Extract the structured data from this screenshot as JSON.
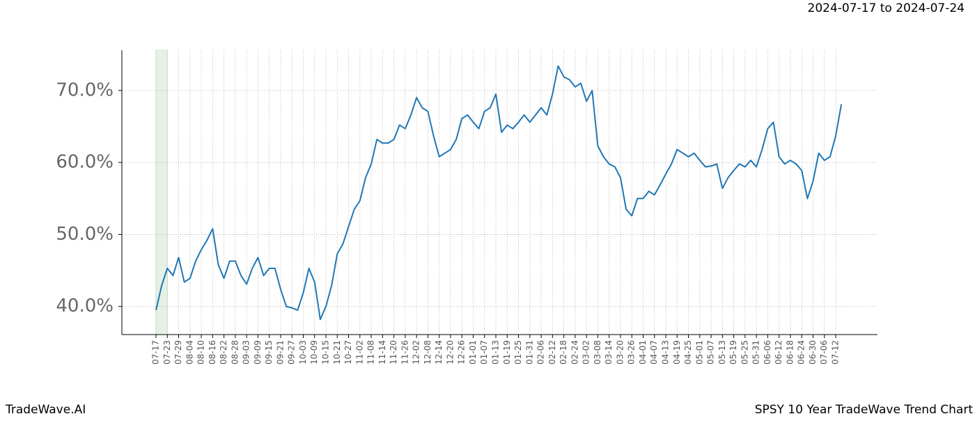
{
  "chart_data": {
    "type": "line",
    "title": "2024-07-17 to 2024-07-24",
    "brand": "TradeWave.AI",
    "subtitle": "SPSY 10 Year TradeWave Trend Chart",
    "categories": [
      "07-17",
      null,
      "07-23",
      null,
      "07-29",
      null,
      "08-04",
      null,
      "08-10",
      null,
      "08-16",
      null,
      "08-22",
      null,
      "08-28",
      null,
      "09-03",
      null,
      "09-09",
      null,
      "09-15",
      null,
      "09-21",
      null,
      "09-27",
      null,
      "10-03",
      null,
      "10-09",
      null,
      "10-15",
      null,
      "10-21",
      null,
      "10-27",
      null,
      "11-02",
      null,
      "11-08",
      null,
      "11-14",
      null,
      "11-20",
      null,
      "11-26",
      null,
      "12-02",
      null,
      "12-08",
      null,
      "12-14",
      null,
      "12-20",
      null,
      "12-26",
      null,
      "01-01",
      null,
      "01-07",
      null,
      "01-13",
      null,
      "01-19",
      null,
      "01-25",
      null,
      "01-31",
      null,
      "02-06",
      null,
      "02-12",
      null,
      "02-18",
      null,
      "02-24",
      null,
      "03-02",
      null,
      "03-08",
      null,
      "03-14",
      null,
      "03-20",
      null,
      "03-26",
      null,
      "04-01",
      null,
      "04-07",
      null,
      "04-13",
      null,
      "04-19",
      null,
      "04-25",
      null,
      "05-01",
      null,
      "05-07",
      null,
      "05-13",
      null,
      "05-19",
      null,
      "05-25",
      null,
      "05-31",
      null,
      "06-06",
      null,
      "06-12",
      null,
      "06-18",
      null,
      "06-24",
      null,
      "06-30",
      null,
      "07-06",
      null,
      "07-12",
      null
    ],
    "series": [
      {
        "color": "#1f77b4",
        "values": [
          39.5,
          42.9,
          45.3,
          44.3,
          46.8,
          43.4,
          43.9,
          46.3,
          47.9,
          49.2,
          50.8,
          45.8,
          43.9,
          46.3,
          46.3,
          44.3,
          43.1,
          45.3,
          46.8,
          44.3,
          45.3,
          45.3,
          42.4,
          40.0,
          39.8,
          39.5,
          41.9,
          45.3,
          43.4,
          38.2,
          40.0,
          42.9,
          47.3,
          48.7,
          51.1,
          53.5,
          54.7,
          57.9,
          59.8,
          63.2,
          62.7,
          62.7,
          63.2,
          65.2,
          64.7,
          66.6,
          69.0,
          67.6,
          67.1,
          63.7,
          60.8,
          61.3,
          61.8,
          63.2,
          66.1,
          66.6,
          65.6,
          64.7,
          67.1,
          67.6,
          69.5,
          64.2,
          65.2,
          64.7,
          65.6,
          66.6,
          65.6,
          66.6,
          67.6,
          66.6,
          69.5,
          73.4,
          71.9,
          71.5,
          70.5,
          71.0,
          68.5,
          70.0,
          62.3,
          60.8,
          59.8,
          59.4,
          57.9,
          53.5,
          52.6,
          55.0,
          55.0,
          56.0,
          55.5,
          56.9,
          58.4,
          59.8,
          61.8,
          61.3,
          60.8,
          61.3,
          60.3,
          59.4,
          59.5,
          59.8,
          56.4,
          57.9,
          58.9,
          59.8,
          59.4,
          60.3,
          59.4,
          61.8,
          64.7,
          65.6,
          60.8,
          59.8,
          60.3,
          59.8,
          58.9,
          55.0,
          57.4,
          61.3,
          60.3,
          60.8,
          63.7,
          68.1
        ]
      }
    ],
    "ylim": [
      36.1,
      75.6
    ],
    "yticks": [
      {
        "value": 40,
        "label": "40.0%"
      },
      {
        "value": 50,
        "label": "50.0%"
      },
      {
        "value": 60,
        "label": "60.0%"
      },
      {
        "value": 70,
        "label": "70.0%"
      }
    ],
    "grid": true
  }
}
